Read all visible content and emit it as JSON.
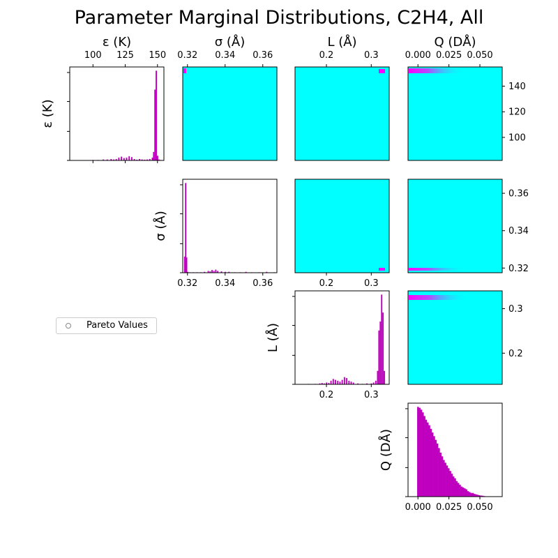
{
  "title": "Parameter Marginal Distributions, C2H4, All",
  "legend": {
    "label": "Pareto Values",
    "marker": "hollow-circle"
  },
  "colors": {
    "histogram": "#bf00bf",
    "density_background": "#00ffff",
    "density_high": "#ff00ff"
  },
  "chart_data": {
    "type": "histogram",
    "parameters": [
      {
        "key": "eps",
        "label": "ε (K)",
        "range": [
          82,
          155
        ],
        "ticks": [
          100,
          125,
          150
        ],
        "tick_labels": [
          "100",
          "125",
          "150"
        ],
        "hist": {
          "x": [
            100,
            104,
            108,
            111,
            114,
            116,
            118,
            120,
            122,
            124,
            126,
            128,
            130,
            132,
            134,
            136,
            138,
            140,
            142,
            144,
            146,
            147,
            148,
            149,
            150,
            151,
            152
          ],
          "y": [
            0.5,
            0.5,
            1,
            1,
            1.5,
            1,
            1.5,
            3,
            4,
            2.5,
            3,
            4.5,
            3.5,
            1.5,
            0.8,
            1.5,
            1,
            0.8,
            1,
            1.5,
            3,
            9,
            75,
            95,
            5,
            1,
            0.5
          ]
        }
      },
      {
        "key": "sigma",
        "label": "σ (Å)",
        "range": [
          0.3175,
          0.3675
        ],
        "ticks": [
          0.32,
          0.34,
          0.36
        ],
        "tick_labels": [
          "0.32",
          "0.34",
          "0.36"
        ],
        "hist": {
          "x": [
            0.3185,
            0.319,
            0.3195,
            0.32,
            0.321,
            0.323,
            0.325,
            0.327,
            0.329,
            0.331,
            0.332,
            0.333,
            0.334,
            0.335,
            0.336,
            0.338,
            0.34,
            0.342,
            0.345,
            0.348,
            0.351,
            0.354,
            0.358,
            0.362,
            0.366
          ],
          "y": [
            18,
            100,
            17,
            1,
            0.5,
            0.5,
            0.5,
            0.5,
            1,
            2,
            1.5,
            3,
            2,
            3.5,
            2,
            1.5,
            1,
            1,
            0.5,
            0.5,
            1,
            0.5,
            0.5,
            1,
            0.5
          ]
        }
      },
      {
        "key": "L",
        "label": "L (Å)",
        "range": [
          0.13,
          0.34
        ],
        "ticks": [
          0.2,
          0.3
        ],
        "tick_labels": [
          "0.2",
          "0.3"
        ],
        "hist": {
          "x": [
            0.16,
            0.175,
            0.185,
            0.19,
            0.195,
            0.2,
            0.205,
            0.21,
            0.215,
            0.22,
            0.225,
            0.23,
            0.235,
            0.24,
            0.245,
            0.25,
            0.255,
            0.26,
            0.27,
            0.28,
            0.29,
            0.3,
            0.305,
            0.31,
            0.314,
            0.317,
            0.32,
            0.323,
            0.326,
            0.329
          ],
          "y": [
            0.5,
            0.5,
            1,
            1.5,
            1,
            2,
            1.5,
            4,
            6,
            5,
            4,
            3,
            5,
            8,
            7,
            4,
            3,
            2,
            1,
            0.5,
            1,
            1,
            2,
            4,
            15,
            60,
            70,
            100,
            80,
            15
          ]
        }
      },
      {
        "key": "Q",
        "label": "Q (DÅ)",
        "range": [
          -0.008,
          0.068
        ],
        "ticks": [
          0.0,
          0.025,
          0.05
        ],
        "tick_labels": [
          "0.000",
          "0.025",
          "0.050"
        ],
        "hist": {
          "x": [
            0.0,
            0.0013,
            0.0026,
            0.0039,
            0.0052,
            0.0065,
            0.0078,
            0.0091,
            0.0104,
            0.0117,
            0.013,
            0.0143,
            0.0156,
            0.0169,
            0.0182,
            0.0195,
            0.0208,
            0.0221,
            0.0234,
            0.0247,
            0.026,
            0.0273,
            0.0286,
            0.0299,
            0.0312,
            0.0325,
            0.0338,
            0.0351,
            0.0364,
            0.0377,
            0.039,
            0.0403,
            0.0416,
            0.0429,
            0.0442,
            0.0455,
            0.0468,
            0.0481,
            0.0494,
            0.0507,
            0.052,
            0.0533,
            0.0546,
            0.0559,
            0.0572,
            0.0585,
            0.0598
          ],
          "y": [
            98,
            97,
            95,
            92,
            88,
            84,
            81,
            78,
            74,
            70,
            66,
            62,
            58,
            53,
            48,
            44,
            40,
            37,
            34,
            31,
            28,
            25,
            22,
            20,
            17,
            15,
            13,
            11,
            10,
            9,
            8,
            6,
            5,
            4,
            4,
            3,
            2.5,
            2,
            1.5,
            1.2,
            1,
            0.6,
            0.4,
            0.3,
            0.2,
            0.1,
            0.1
          ]
        }
      }
    ],
    "right_axis": {
      "eps": {
        "ticks": [
          100,
          120,
          140
        ],
        "tick_labels": [
          "100",
          "120",
          "140"
        ]
      },
      "sigma": {
        "ticks": [
          0.32,
          0.34,
          0.36
        ],
        "tick_labels": [
          "0.32",
          "0.34",
          "0.36"
        ]
      },
      "L": {
        "ticks": [
          0.2,
          0.3
        ],
        "tick_labels": [
          "0.2",
          "0.3"
        ]
      }
    }
  }
}
